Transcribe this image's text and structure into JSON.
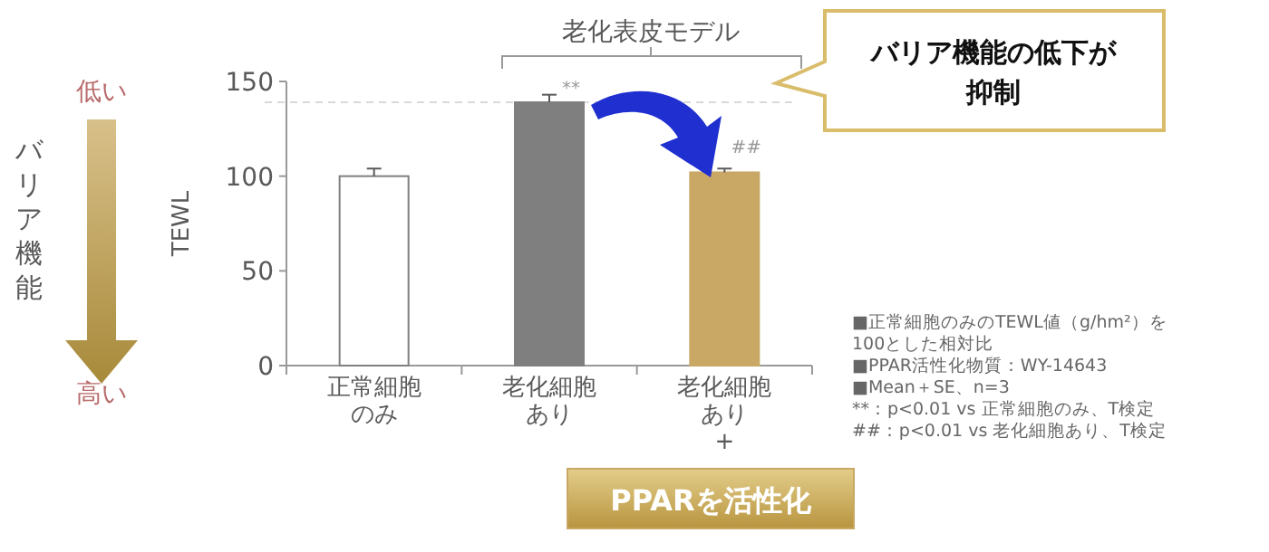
{
  "chart_data": {
    "type": "bar",
    "ylabel": "TEWL",
    "categories": [
      "正常細胞のみ",
      "老化細胞あり",
      "老化細胞あり"
    ],
    "values": [
      100,
      139,
      102
    ],
    "colors": [
      "#ffffff",
      "#7f7f7f",
      "#c9a866"
    ],
    "errors": [
      4,
      4,
      2
    ],
    "ylim": [
      0,
      150
    ],
    "yticks": [
      0,
      50,
      100,
      150
    ],
    "ref_lines": [
      {
        "axis": "y",
        "value": 139,
        "line_style": "dashed",
        "color": "#d9d9d9"
      }
    ],
    "annotations": [
      "老化表皮モデル",
      {
        "text": "**",
        "x": "老化細胞あり",
        "y": 147
      },
      "##",
      "バリア機能の低下が抑制",
      "PPARを活性化",
      "低い",
      "バリア機能",
      "高い",
      "■正常細胞のみのTEWL値（g/hm²）を\n100とした相対比",
      "■PPAR活性化物質：WY-14643",
      "■Mean＋SE、n=3",
      "**：p<0.01 vs 正常細胞のみ、T検定",
      "##：p<0.01 vs 老化細胞あり、T検定",
      "+"
    ]
  }
}
